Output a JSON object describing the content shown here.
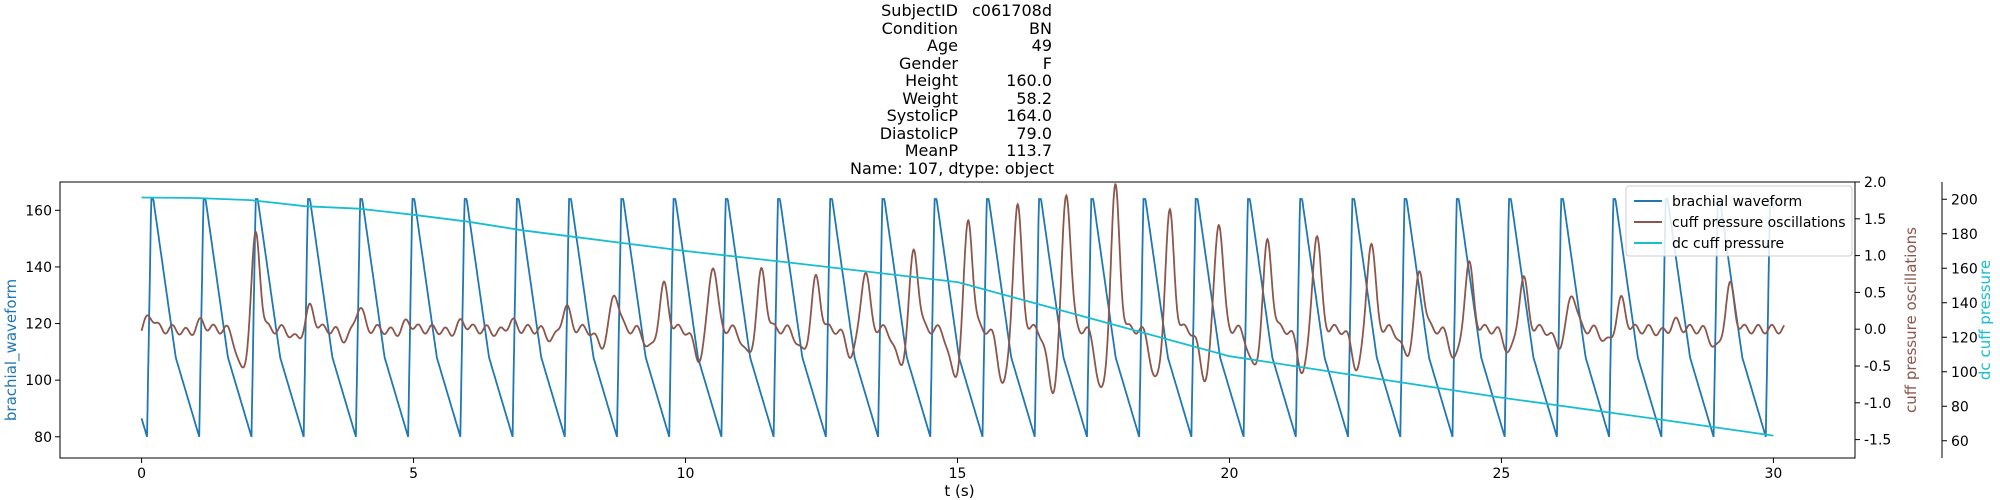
{
  "title_lines": [
    {
      "key": "SubjectID",
      "value": "c061708d"
    },
    {
      "key": "Condition",
      "value": "BN"
    },
    {
      "key": "Age",
      "value": "49"
    },
    {
      "key": "Gender",
      "value": "F"
    },
    {
      "key": "Height",
      "value": "160.0"
    },
    {
      "key": "Weight",
      "value": "58.2"
    },
    {
      "key": "SystolicP",
      "value": "164.0"
    },
    {
      "key": "DiastolicP",
      "value": "79.0"
    },
    {
      "key": "MeanP",
      "value": "113.7"
    },
    {
      "key": "footer",
      "value": "Name: 107, dtype: object"
    }
  ],
  "chart_data": {
    "type": "line",
    "xlabel": "t (s)",
    "xlim": [
      -1.5,
      31.5
    ],
    "xticks": [
      0,
      5,
      10,
      15,
      20,
      25,
      30
    ],
    "axes": {
      "left": {
        "label": "brachial_waveform",
        "color": "#1f77b4",
        "ylim": [
          72.5,
          170
        ],
        "ticks": [
          80,
          100,
          120,
          140,
          160
        ]
      },
      "right1": {
        "label": "cuff pressure oscillations",
        "color": "#8c564b",
        "ylim": [
          -1.75,
          2.0
        ],
        "ticks": [
          -1.5,
          -1.0,
          -0.5,
          0.0,
          0.5,
          1.0,
          1.5,
          2.0
        ]
      },
      "right2": {
        "label": "dc cuff pressure",
        "color": "#17becf",
        "ylim": [
          50,
          210
        ],
        "ticks": [
          60,
          80,
          100,
          120,
          140,
          160,
          180,
          200
        ]
      }
    },
    "legend": {
      "placement": "top-right",
      "entries": [
        "brachial waveform",
        "cuff pressure oscillations",
        "dc cuff pressure"
      ]
    },
    "series": [
      {
        "name": "brachial waveform",
        "axis": "left",
        "color": "#1f77b4",
        "description": "periodic arterial pulse",
        "t_start": 0.0,
        "t_end": 30.0,
        "period_s": 0.96,
        "first_beat_s": 0.1,
        "systolic": 164,
        "diastolic": 80
      },
      {
        "name": "cuff pressure oscillations",
        "axis": "right1",
        "color": "#8c564b",
        "t_start": 0.0,
        "t_end": 30.2,
        "beat_peaks": [
          [
            0.15,
            0.2
          ],
          [
            1.1,
            0.1
          ],
          [
            2.1,
            1.3
          ],
          [
            3.1,
            0.3
          ],
          [
            4.0,
            0.3
          ],
          [
            4.9,
            0.1
          ],
          [
            5.9,
            0.1
          ],
          [
            6.8,
            0.1
          ],
          [
            7.8,
            0.3
          ],
          [
            8.7,
            0.5
          ],
          [
            9.6,
            0.6
          ],
          [
            10.5,
            0.9
          ],
          [
            11.4,
            0.8
          ],
          [
            12.4,
            0.7
          ],
          [
            13.3,
            0.8
          ],
          [
            14.2,
            1.1
          ],
          [
            15.2,
            1.5
          ],
          [
            16.1,
            1.7
          ],
          [
            17.0,
            1.9
          ],
          [
            17.9,
            1.95
          ],
          [
            18.9,
            1.6
          ],
          [
            19.8,
            1.5
          ],
          [
            20.7,
            1.2
          ],
          [
            21.6,
            1.3
          ],
          [
            22.6,
            1.2
          ],
          [
            23.5,
            0.8
          ],
          [
            24.4,
            0.9
          ],
          [
            25.4,
            0.7
          ],
          [
            26.3,
            0.5
          ],
          [
            27.2,
            0.4
          ],
          [
            28.2,
            0.1
          ],
          [
            29.2,
            0.6
          ]
        ],
        "troughs": -0.7
      },
      {
        "name": "dc cuff pressure",
        "axis": "right2",
        "color": "#17becf",
        "points": [
          [
            0.0,
            201
          ],
          [
            1.0,
            200.7
          ],
          [
            2.0,
            199.5
          ],
          [
            3.0,
            196
          ],
          [
            4.0,
            194.5
          ],
          [
            5.0,
            191
          ],
          [
            6.0,
            187
          ],
          [
            7.0,
            182
          ],
          [
            8.0,
            178
          ],
          [
            10.0,
            170
          ],
          [
            12.0,
            163
          ],
          [
            15.0,
            152
          ],
          [
            20.0,
            109
          ],
          [
            25.0,
            85
          ],
          [
            28.0,
            72
          ],
          [
            30.0,
            63
          ]
        ]
      }
    ]
  }
}
